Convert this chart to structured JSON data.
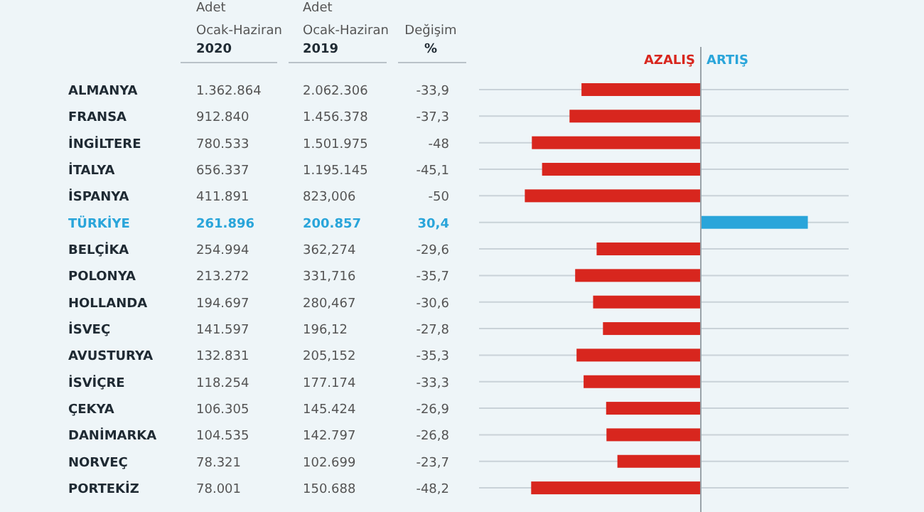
{
  "chart_data": {
    "type": "bar",
    "orientation": "horizontal",
    "categories": [
      "ALMANYA",
      "FRANSA",
      "İNGİLTERE",
      "İTALYA",
      "İSPANYA",
      "TÜRKİYE",
      "BELÇİKA",
      "POLONYA",
      "HOLLANDA",
      "İSVEÇ",
      "AVUSTURYA",
      "İSVİÇRE",
      "ÇEKYA",
      "DANİMARKA",
      "NORVEÇ",
      "PORTEKİZ"
    ],
    "values": [
      -33.9,
      -37.3,
      -48,
      -45.1,
      -50,
      30.4,
      -29.6,
      -35.7,
      -30.6,
      -27.8,
      -35.3,
      -33.3,
      -26.9,
      -26.8,
      -23.7,
      -48.2
    ],
    "value_labels": [
      "-33,9",
      "-37,3",
      "-48",
      "-45,1",
      "-50",
      "30,4",
      "-29,6",
      "-35,7",
      "-30,6",
      "-27,8",
      "-35,3",
      "-33,3",
      "-26,9",
      "-26,8",
      "-23,7",
      "-48,2"
    ],
    "colors": [
      "#d8261e",
      "#d8261e",
      "#d8261e",
      "#d8261e",
      "#d8261e",
      "#2aa5da",
      "#d8261e",
      "#d8261e",
      "#d8261e",
      "#d8261e",
      "#d8261e",
      "#d8261e",
      "#d8261e",
      "#d8261e",
      "#d8261e",
      "#d8261e"
    ],
    "xlim": [
      -63,
      42
    ],
    "grid": "y",
    "annotations": [
      "Adet",
      "Ocak-Haziran",
      "2020",
      "Adet",
      "Ocak-Haziran",
      "2019",
      "Değişim",
      "%",
      "AZALIŞ",
      "ARTIŞ",
      "1.362.864",
      "912.840",
      "780.533",
      "656.337",
      "411.891",
      "261.896",
      "254.994",
      "213.272",
      "194.697",
      "141.597",
      "132.831",
      "118.254",
      "106.305",
      "104.535",
      "78.321",
      "78.001",
      "2.062.306",
      "1.456.378",
      "1.501.975",
      "1.195.145",
      "823,006",
      "200.857",
      "362,274",
      "331,716",
      "280,467",
      "196,12",
      "205,152",
      "177.174",
      "145.424",
      "142.797",
      "102.699",
      "150.688"
    ]
  }
}
